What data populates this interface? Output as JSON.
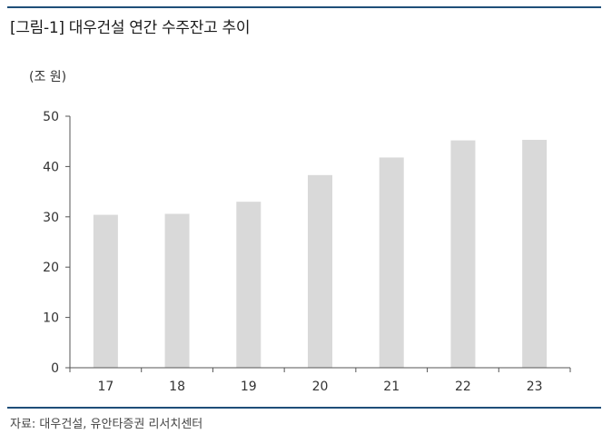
{
  "header": {
    "title": "[그림-1] 대우건설 연간 수주잔고 추이"
  },
  "footer": {
    "source": "자료: 대우건설, 유안타증권 리서치센터"
  },
  "colors": {
    "rule": "#1f4e79",
    "bar": "#d9d9d9",
    "axis": "#555555"
  },
  "chart_data": {
    "type": "bar",
    "unit_label": "(조 원)",
    "categories": [
      "17",
      "18",
      "19",
      "20",
      "21",
      "22",
      "23"
    ],
    "values": [
      30.4,
      30.6,
      33.0,
      38.3,
      41.8,
      45.2,
      45.3
    ],
    "ylim": [
      0,
      50
    ],
    "yticks": [
      0,
      10,
      20,
      30,
      40,
      50
    ],
    "grid": false,
    "legend": "none"
  }
}
